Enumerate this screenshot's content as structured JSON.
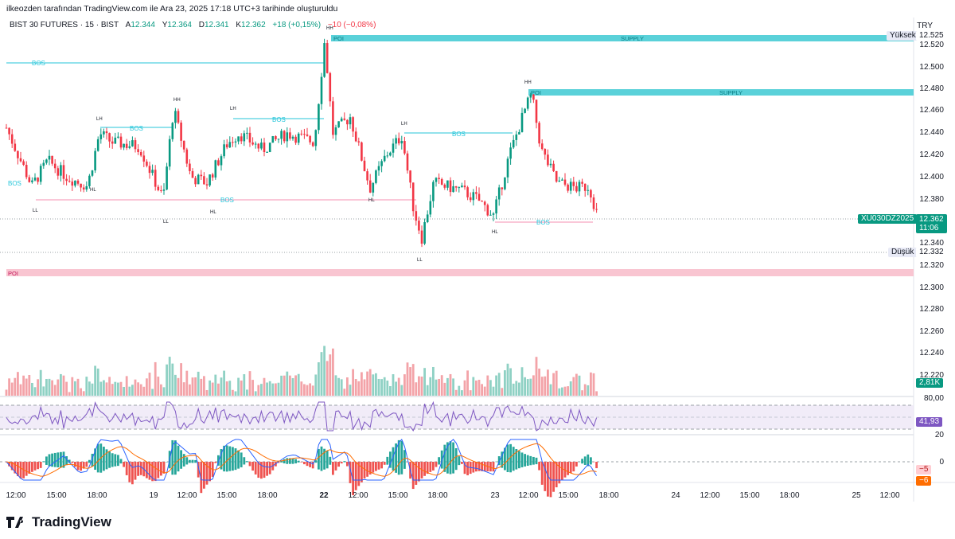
{
  "header": {
    "attribution": "ilkeozden tarafından TradingView.com ile Ara 23, 2025 17:18 UTC+3 tarihinde oluşturuldu",
    "symbol": "BIST 30 FUTURES · 15 · BIST",
    "o_label": "A",
    "o_value": "12.344",
    "h_label": "Y",
    "h_value": "12.364",
    "l_label": "D",
    "l_value": "12.341",
    "c_label": "K",
    "c_value": "12.362",
    "change": "+18 (+0,15%)",
    "change2": "−10 (−0,08%)",
    "currency": "TRY"
  },
  "tags": {
    "high_label": "Yüksek",
    "high_value": "12.525",
    "last_symbol": "XU030DZ2025",
    "last_value": "12.362",
    "countdown": "11:06",
    "low_label": "Düşük",
    "low_value": "12.332",
    "volume_value": "2,81K",
    "rsi_value": "41,93",
    "macd_a": "−5",
    "macd_b": "−6"
  },
  "price_axis": [
    "12.520",
    "12.500",
    "12.480",
    "12.460",
    "12.440",
    "12.420",
    "12.400",
    "12.380",
    "12.340",
    "12.320",
    "12.300",
    "12.280",
    "12.260",
    "12.240",
    "12.220"
  ],
  "rsi_axis": [
    "80,00",
    "20"
  ],
  "macd_axis": [
    "0"
  ],
  "time_axis": [
    "12:00",
    "15:00",
    "18:00",
    "19",
    "12:00",
    "15:00",
    "18:00",
    "22",
    "12:00",
    "15:00",
    "18:00",
    "23",
    "12:00",
    "15:00",
    "18:00",
    "24",
    "12:00",
    "15:00",
    "18:00",
    "25",
    "12:00"
  ],
  "annotations": {
    "poi": "POI",
    "supply": "SUPPLY",
    "bos": "BOS",
    "hh": "HH",
    "lh": "LH",
    "hl": "HL",
    "ll": "LL"
  },
  "footer": {
    "brand": "TradingView"
  },
  "colors": {
    "up": "#089981",
    "down": "#f23645",
    "supply": "#5ad1d9",
    "poi_demand": "#f9c5d1",
    "rsi": "#7e57c2",
    "macd": "#2962ff",
    "signal": "#ff6d00"
  },
  "chart_data": {
    "type": "candlestick",
    "interval": "15",
    "ylim": [
      12.3,
      12.53
    ],
    "zones": [
      {
        "label": "POI SUPPLY",
        "from": 12.522,
        "to": 12.528
      },
      {
        "label": "POI SUPPLY",
        "from": 12.474,
        "to": 12.48
      },
      {
        "label": "POI",
        "from": 12.313,
        "to": 12.319
      }
    ],
    "levels": {
      "high": 12.525,
      "last": 12.362,
      "low": 12.332
    },
    "rsi": {
      "last": 41.93,
      "bands": [
        80,
        20
      ]
    },
    "macd": {
      "macd": -6,
      "signal": -5
    },
    "volume": {
      "last": "2,81K"
    }
  }
}
